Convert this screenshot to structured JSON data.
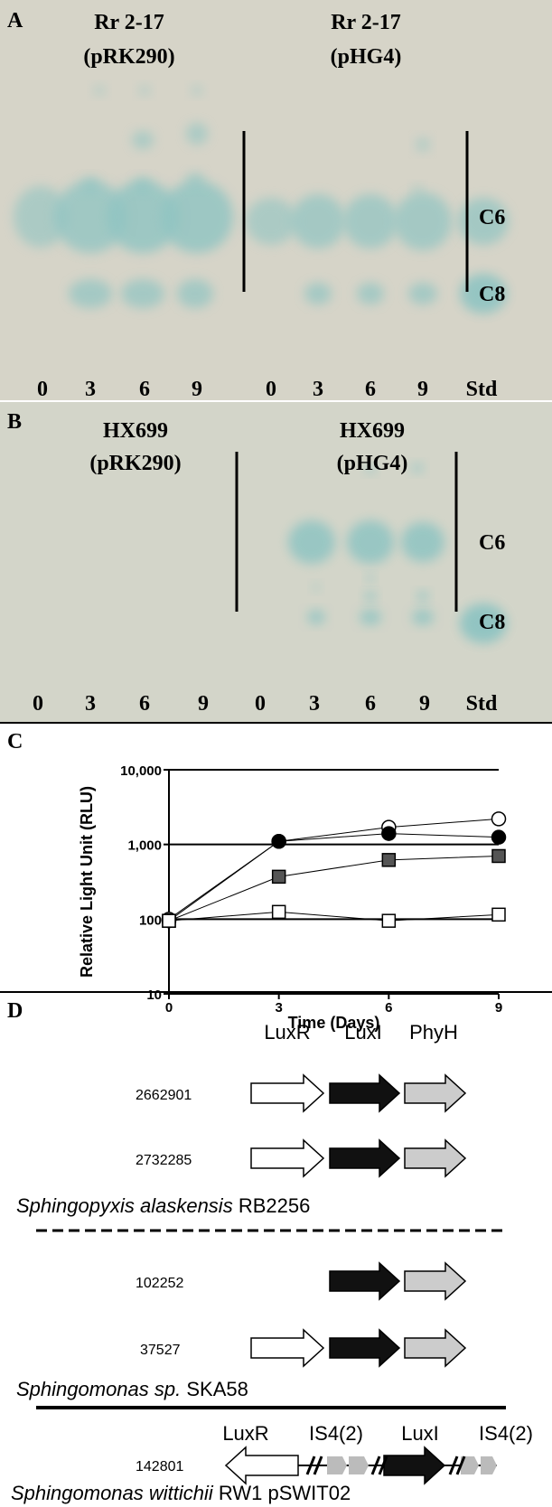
{
  "panel_a": {
    "letter": "A",
    "left_title": [
      "Rr 2-17",
      "(pRK290)"
    ],
    "right_title": [
      "Rr 2-17",
      "(pHG4)"
    ],
    "c6": "C6",
    "c8": "C8",
    "lanes": [
      "0",
      "3",
      "6",
      "9",
      "0",
      "3",
      "6",
      "9",
      "Std"
    ]
  },
  "panel_b": {
    "letter": "B",
    "left_title": [
      "HX699",
      "(pRK290)"
    ],
    "right_title": [
      "HX699",
      "(pHG4)"
    ],
    "c6": "C6",
    "c8": "C8",
    "lanes": [
      "0",
      "3",
      "6",
      "9",
      "0",
      "3",
      "6",
      "9",
      "Std"
    ]
  },
  "chart_data": {
    "type": "line",
    "letter": "C",
    "y_label": "Relative Light Unit (RLU)",
    "x_label": "Time (Days)",
    "log_y": true,
    "grid": true,
    "x": [
      0,
      3,
      6,
      9
    ],
    "xlim": [
      0,
      9
    ],
    "xticks": [
      0,
      3,
      6,
      9
    ],
    "ylim": [
      10,
      10000
    ],
    "yticks": [
      {
        "value": 10000,
        "label": "10,000"
      },
      {
        "value": 1000,
        "label": "1,000"
      },
      100,
      10
    ],
    "series": [
      {
        "color": "#000000",
        "marker": "circle",
        "fill": "#ffffff",
        "values": [
          100,
          1100,
          1700,
          2200
        ]
      },
      {
        "color": "#000000",
        "marker": "circle",
        "fill": "#000000",
        "values": [
          95,
          1100,
          1400,
          1250
        ]
      },
      {
        "color": "#000000",
        "marker": "square",
        "fill": "#555555",
        "values": [
          95,
          370,
          620,
          700
        ]
      },
      {
        "color": "#000000",
        "marker": "square",
        "fill": "#ffffff",
        "values": [
          95,
          125,
          95,
          115
        ]
      }
    ]
  },
  "panel_d": {
    "letter": "D",
    "genes_top": [
      "LuxR",
      "LuxI",
      "PhyH"
    ],
    "ids": [
      "2662901",
      "2732285",
      "102252",
      "37527",
      "142801"
    ],
    "org1": [
      "Sphingopyxis alaskensis",
      "RB2256"
    ],
    "org2": [
      "Sphingomonas sp.",
      "SKA58"
    ],
    "genes_bottom": [
      "LuxR",
      "IS4(2)",
      "LuxI",
      "IS4(2)"
    ],
    "org3": [
      "Sphingomonas wittichii",
      "RW1 pSWIT02"
    ]
  }
}
